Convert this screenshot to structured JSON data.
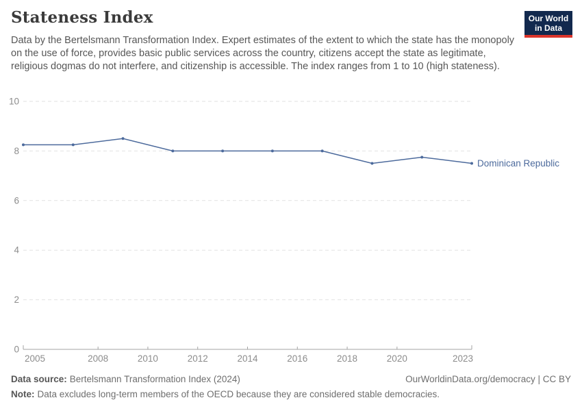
{
  "header": {
    "title": "Stateness Index",
    "subtitle": "Data by the Bertelsmann Transformation Index. Expert estimates of the extent to which the state has the monopoly on the use of force, provides basic public services across the country, citizens accept the state as legitimate, religious dogmas do not interfere, and citizenship is accessible. The index ranges from 1 to 10 (high stateness).",
    "logo": {
      "line1": "Our World",
      "line2": "in Data",
      "bg_color": "#12294e",
      "accent_color": "#dc352c"
    }
  },
  "chart_data": {
    "type": "line",
    "title": "Stateness Index",
    "x": [
      2005,
      2007,
      2009,
      2011,
      2013,
      2015,
      2017,
      2019,
      2021,
      2023
    ],
    "series": [
      {
        "name": "Dominican Republic",
        "color": "#4c6a9c",
        "values": [
          8.25,
          8.25,
          8.5,
          8.0,
          8.0,
          8.0,
          8.0,
          7.5,
          7.75,
          7.5
        ]
      }
    ],
    "xlim": [
      2005,
      2023
    ],
    "ylim": [
      0,
      10
    ],
    "x_tick_labels": [
      "2005",
      "2008",
      "2010",
      "2012",
      "2014",
      "2016",
      "2018",
      "2020",
      "2023"
    ],
    "x_ticks": [
      2005,
      2008,
      2010,
      2012,
      2014,
      2016,
      2018,
      2020,
      2023
    ],
    "y_ticks": [
      0,
      2,
      4,
      6,
      8,
      10
    ],
    "grid": "horizontal-dashed",
    "legend_position": "end-of-line-label",
    "colors": {
      "gridline": "#e2e2e2",
      "axis": "#a3a3a3",
      "tick_text": "#8c8c8c"
    }
  },
  "footer": {
    "source_label": "Data source:",
    "source_value": "Bertelsmann Transformation Index (2024)",
    "attribution": "OurWorldinData.org/democracy | CC BY",
    "note_label": "Note:",
    "note_value": "Data excludes long-term members of the OECD because they are considered stable democracies."
  }
}
